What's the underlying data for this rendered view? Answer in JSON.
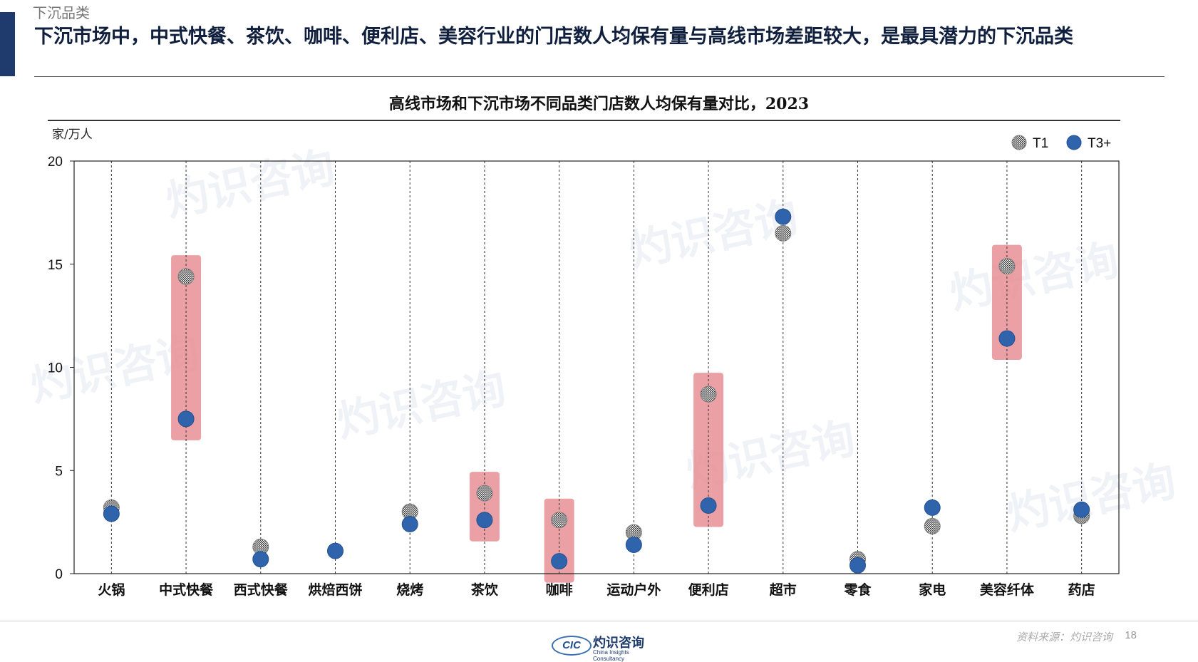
{
  "header": {
    "section_label": "下沉品类",
    "headline": "下沉市场中，中式快餐、茶饮、咖啡、便利店、美容行业的门店数人均保有量与高线市场差距较大，是最具潜力的下沉品类"
  },
  "footer": {
    "source": "资料来源：灼识咨询",
    "page_number": "18",
    "logo_mark": "CIC",
    "logo_cn": "灼识咨询",
    "logo_en": "China Insights Consultancy"
  },
  "watermark": {
    "cn": "灼识咨询",
    "en": "China Insights Consultancy",
    "mark": "CIC"
  },
  "colors": {
    "accent": "#1f3b6e",
    "t3_dot": "#2f64ad",
    "highlight": "#e88f95",
    "t1_dot": "#7a7a7a"
  },
  "chart_data": {
    "type": "scatter",
    "title": "高线市场和下沉市场不同品类门店数人均保有量对比，2023",
    "ylabel": "家/万人",
    "xlabel": "",
    "ylim": [
      0,
      20
    ],
    "yticks": [
      0,
      5,
      10,
      15,
      20
    ],
    "grid": "vertical dashed lines at each category",
    "legend_position": "top-right",
    "categories": [
      "火锅",
      "中式快餐",
      "西式快餐",
      "烘焙西饼",
      "烧烤",
      "茶饮",
      "咖啡",
      "运动户外",
      "便利店",
      "超市",
      "零食",
      "家电",
      "美容纤体",
      "药店"
    ],
    "series": [
      {
        "name": "T1",
        "values": [
          3.2,
          14.4,
          1.3,
          null,
          3.0,
          3.9,
          2.6,
          2.0,
          8.7,
          16.5,
          0.7,
          2.3,
          14.9,
          2.8
        ]
      },
      {
        "name": "T3+",
        "values": [
          2.9,
          7.5,
          0.7,
          1.1,
          2.4,
          2.6,
          0.6,
          1.4,
          3.3,
          17.3,
          0.4,
          3.2,
          11.4,
          3.1
        ]
      }
    ],
    "highlighted_categories": [
      "中式快餐",
      "茶饮",
      "咖啡",
      "便利店",
      "美容纤体"
    ]
  }
}
